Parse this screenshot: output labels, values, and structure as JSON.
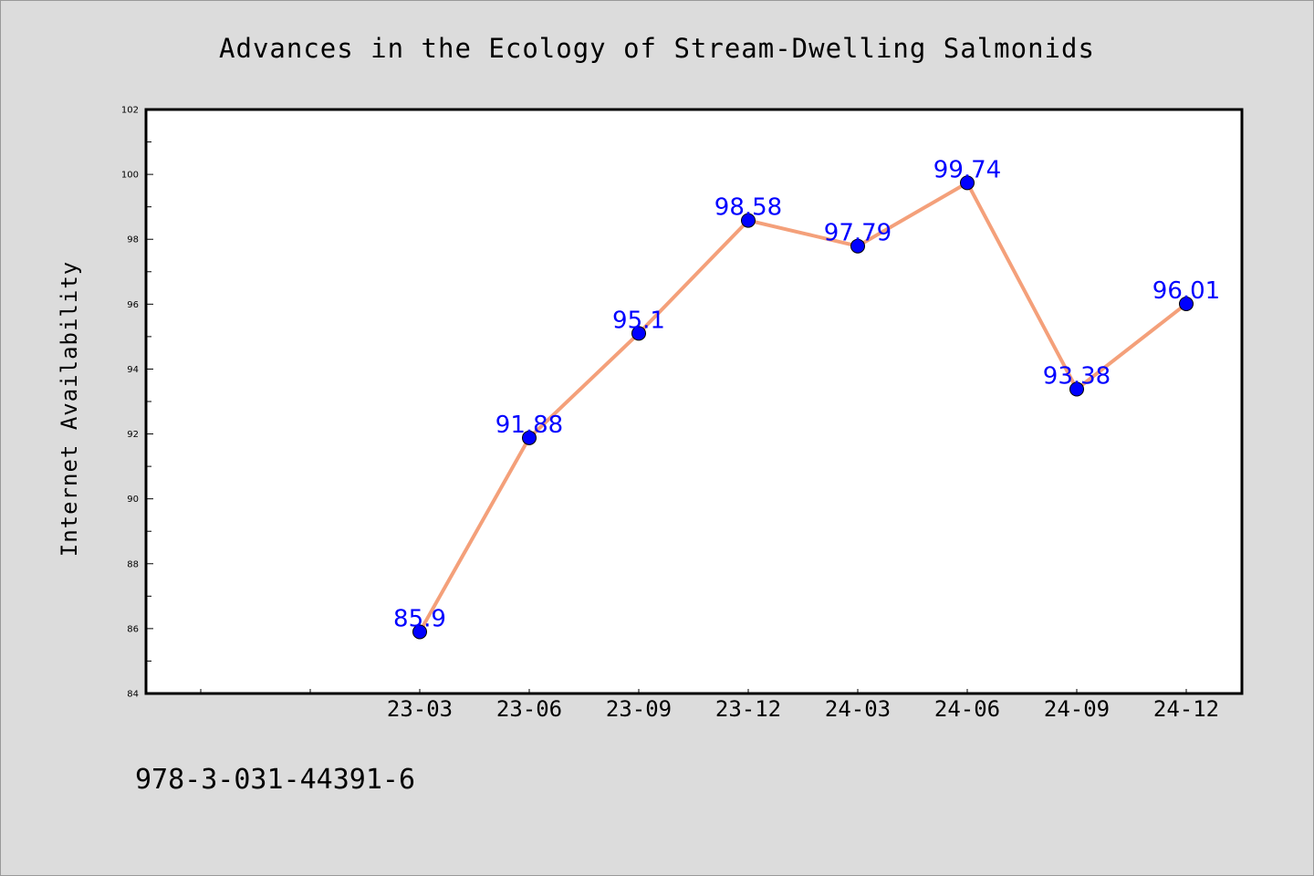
{
  "chart_data": {
    "type": "line",
    "title": "Advances in the Ecology of Stream-Dwelling Salmonids",
    "ylabel": "Internet Availability",
    "xlabel": "",
    "categories": [
      "23-03",
      "23-06",
      "23-09",
      "23-12",
      "24-03",
      "24-06",
      "24-09",
      "24-12"
    ],
    "values": [
      85.9,
      91.88,
      95.1,
      98.58,
      97.79,
      99.74,
      93.38,
      96.01
    ],
    "data_labels": [
      "85.9",
      "91.88",
      "95.1",
      "98.58",
      "97.79",
      "99.74",
      "93.38",
      "96.01"
    ],
    "ylim": [
      84,
      102
    ],
    "yticks": [
      84,
      86,
      88,
      90,
      92,
      94,
      96,
      98,
      100,
      102
    ],
    "grid": false,
    "legend": "none",
    "line_color": "#f4a07a",
    "marker_color": "#0000ff",
    "label_color": "#0000ff"
  },
  "footer_text": "978-3-031-44391-6"
}
